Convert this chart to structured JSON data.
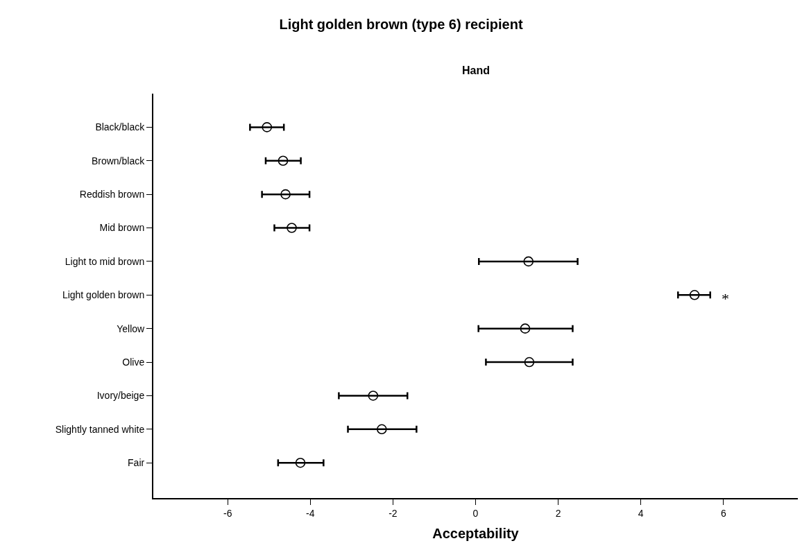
{
  "chart_data": {
    "type": "scatter",
    "title": "Light golden brown (type 6) recipient",
    "subtitle": "Hand",
    "xlabel": "Acceptability",
    "orientation": "horizontal",
    "categories": [
      "Black/black",
      "Brown/black",
      "Reddish brown",
      "Mid brown",
      "Light to mid brown",
      "Light golden brown",
      "Yellow",
      "Olive",
      "Ivory/beige",
      "Slightly tanned white",
      "Fair"
    ],
    "series": [
      {
        "color": "#000000",
        "values": [
          -5.05,
          -4.66,
          -4.6,
          -4.45,
          1.28,
          5.3,
          1.2,
          1.3,
          -2.48,
          -2.27,
          -4.24
        ],
        "errors": [
          [
            -5.46,
            -4.64
          ],
          [
            -5.08,
            -4.23
          ],
          [
            -5.17,
            -4.02
          ],
          [
            -4.87,
            -4.02
          ],
          [
            0.08,
            2.47
          ],
          [
            4.9,
            5.68
          ],
          [
            0.07,
            2.35
          ],
          [
            0.25,
            2.35
          ],
          [
            -3.31,
            -1.65
          ],
          [
            -3.09,
            -1.43
          ],
          [
            -4.78,
            -3.68
          ]
        ]
      }
    ],
    "xlim": [
      -7.8,
      7.8
    ],
    "xticks": [
      -6,
      -4,
      -2,
      0,
      2,
      4,
      6
    ],
    "marker": "circle",
    "annotations": [
      "*"
    ]
  }
}
